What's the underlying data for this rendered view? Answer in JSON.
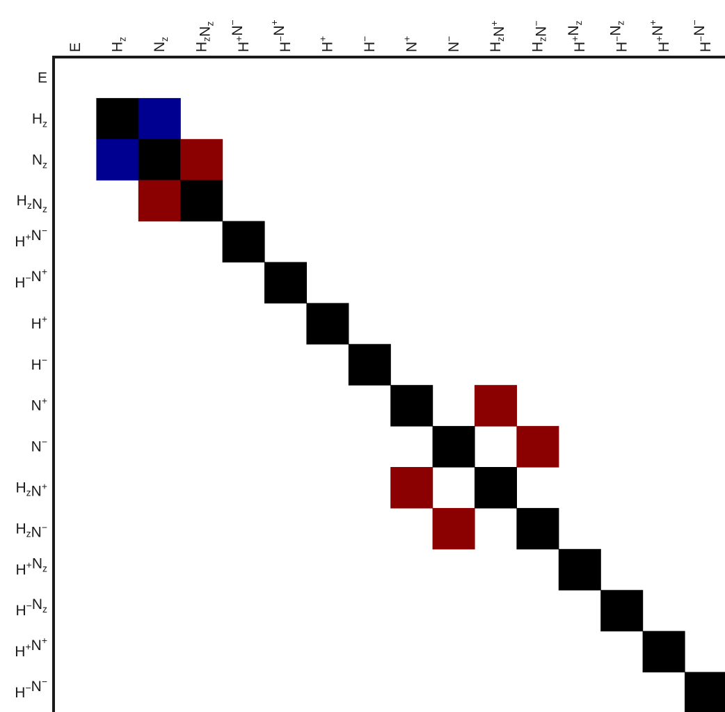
{
  "chart_data": {
    "type": "heatmap",
    "title": "",
    "xlabel": "",
    "ylabel": "",
    "grid": false,
    "legend": "none",
    "labels": [
      {
        "base": "E",
        "parts": [
          [
            "E",
            ""
          ]
        ]
      },
      {
        "base": "Hz",
        "parts": [
          [
            "H",
            "z"
          ]
        ]
      },
      {
        "base": "Nz",
        "parts": [
          [
            "N",
            "z"
          ]
        ]
      },
      {
        "base": "HzNz",
        "parts": [
          [
            "H",
            "z"
          ],
          [
            "N",
            "z"
          ]
        ]
      },
      {
        "base": "H+N−",
        "parts": [
          [
            "H",
            "+"
          ],
          [
            "N",
            "−"
          ]
        ]
      },
      {
        "base": "H−N+",
        "parts": [
          [
            "H",
            "−"
          ],
          [
            "N",
            "+"
          ]
        ]
      },
      {
        "base": "H+",
        "parts": [
          [
            "H",
            "+"
          ]
        ]
      },
      {
        "base": "H−",
        "parts": [
          [
            "H",
            "−"
          ]
        ]
      },
      {
        "base": "N+",
        "parts": [
          [
            "N",
            "+"
          ]
        ]
      },
      {
        "base": "N−",
        "parts": [
          [
            "N",
            "−"
          ]
        ]
      },
      {
        "base": "HzN+",
        "parts": [
          [
            "H",
            "z"
          ],
          [
            "N",
            "+"
          ]
        ]
      },
      {
        "base": "HzN−",
        "parts": [
          [
            "H",
            "z"
          ],
          [
            "N",
            "−"
          ]
        ]
      },
      {
        "base": "H+Nz",
        "parts": [
          [
            "H",
            "+"
          ],
          [
            "N",
            "z"
          ]
        ]
      },
      {
        "base": "H−Nz",
        "parts": [
          [
            "H",
            "−"
          ],
          [
            "N",
            "z"
          ]
        ]
      },
      {
        "base": "H+N+",
        "parts": [
          [
            "H",
            "+"
          ],
          [
            "N",
            "+"
          ]
        ]
      },
      {
        "base": "H−N−",
        "parts": [
          [
            "H",
            "−"
          ],
          [
            "N",
            "−"
          ]
        ]
      }
    ],
    "color_map": {
      "black": "#000000",
      "blue": "#000090",
      "red": "#8b0000"
    },
    "cells": [
      {
        "row": 1,
        "col": 1,
        "color": "black"
      },
      {
        "row": 1,
        "col": 2,
        "color": "blue"
      },
      {
        "row": 2,
        "col": 1,
        "color": "blue"
      },
      {
        "row": 2,
        "col": 2,
        "color": "black"
      },
      {
        "row": 2,
        "col": 3,
        "color": "red"
      },
      {
        "row": 3,
        "col": 2,
        "color": "red"
      },
      {
        "row": 3,
        "col": 3,
        "color": "black"
      },
      {
        "row": 4,
        "col": 4,
        "color": "black"
      },
      {
        "row": 5,
        "col": 5,
        "color": "black"
      },
      {
        "row": 6,
        "col": 6,
        "color": "black"
      },
      {
        "row": 7,
        "col": 7,
        "color": "black"
      },
      {
        "row": 8,
        "col": 8,
        "color": "black"
      },
      {
        "row": 8,
        "col": 10,
        "color": "red"
      },
      {
        "row": 9,
        "col": 9,
        "color": "black"
      },
      {
        "row": 9,
        "col": 11,
        "color": "red"
      },
      {
        "row": 10,
        "col": 8,
        "color": "red"
      },
      {
        "row": 10,
        "col": 10,
        "color": "black"
      },
      {
        "row": 11,
        "col": 9,
        "color": "red"
      },
      {
        "row": 11,
        "col": 11,
        "color": "black"
      },
      {
        "row": 12,
        "col": 12,
        "color": "black"
      },
      {
        "row": 13,
        "col": 13,
        "color": "black"
      },
      {
        "row": 14,
        "col": 14,
        "color": "black"
      },
      {
        "row": 15,
        "col": 15,
        "color": "black"
      }
    ]
  }
}
